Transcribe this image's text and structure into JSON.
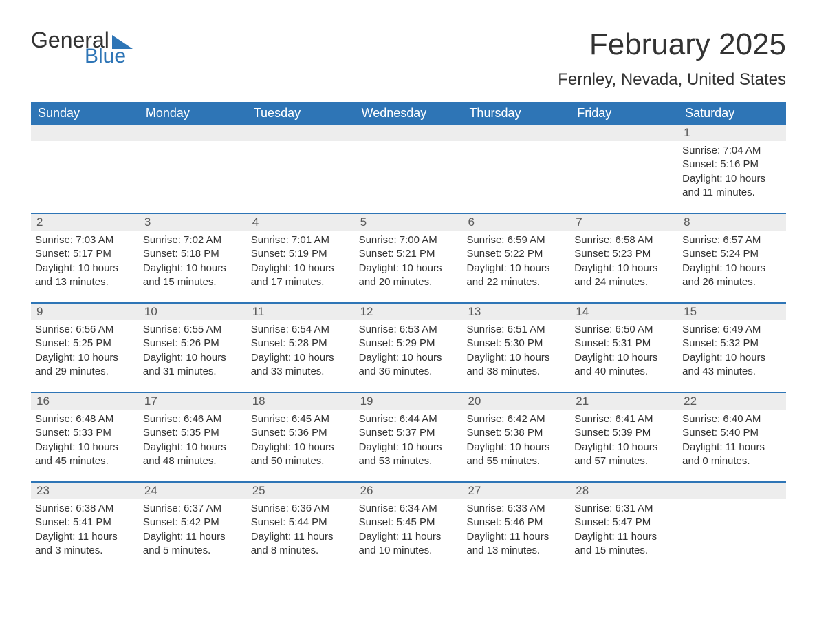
{
  "logo": {
    "text1": "General",
    "text2": "Blue"
  },
  "title": "February 2025",
  "location": "Fernley, Nevada, United States",
  "colors": {
    "accent": "#2e75b6",
    "header_text": "#ffffff",
    "daynum_bg": "#ededed",
    "daynum_text": "#595959",
    "body_text": "#333333",
    "background": "#ffffff"
  },
  "weekdays": [
    "Sunday",
    "Monday",
    "Tuesday",
    "Wednesday",
    "Thursday",
    "Friday",
    "Saturday"
  ],
  "weeks": [
    [
      {
        "day": "",
        "sunrise": "",
        "sunset": "",
        "daylight": ""
      },
      {
        "day": "",
        "sunrise": "",
        "sunset": "",
        "daylight": ""
      },
      {
        "day": "",
        "sunrise": "",
        "sunset": "",
        "daylight": ""
      },
      {
        "day": "",
        "sunrise": "",
        "sunset": "",
        "daylight": ""
      },
      {
        "day": "",
        "sunrise": "",
        "sunset": "",
        "daylight": ""
      },
      {
        "day": "",
        "sunrise": "",
        "sunset": "",
        "daylight": ""
      },
      {
        "day": "1",
        "sunrise": "Sunrise: 7:04 AM",
        "sunset": "Sunset: 5:16 PM",
        "daylight": "Daylight: 10 hours and 11 minutes."
      }
    ],
    [
      {
        "day": "2",
        "sunrise": "Sunrise: 7:03 AM",
        "sunset": "Sunset: 5:17 PM",
        "daylight": "Daylight: 10 hours and 13 minutes."
      },
      {
        "day": "3",
        "sunrise": "Sunrise: 7:02 AM",
        "sunset": "Sunset: 5:18 PM",
        "daylight": "Daylight: 10 hours and 15 minutes."
      },
      {
        "day": "4",
        "sunrise": "Sunrise: 7:01 AM",
        "sunset": "Sunset: 5:19 PM",
        "daylight": "Daylight: 10 hours and 17 minutes."
      },
      {
        "day": "5",
        "sunrise": "Sunrise: 7:00 AM",
        "sunset": "Sunset: 5:21 PM",
        "daylight": "Daylight: 10 hours and 20 minutes."
      },
      {
        "day": "6",
        "sunrise": "Sunrise: 6:59 AM",
        "sunset": "Sunset: 5:22 PM",
        "daylight": "Daylight: 10 hours and 22 minutes."
      },
      {
        "day": "7",
        "sunrise": "Sunrise: 6:58 AM",
        "sunset": "Sunset: 5:23 PM",
        "daylight": "Daylight: 10 hours and 24 minutes."
      },
      {
        "day": "8",
        "sunrise": "Sunrise: 6:57 AM",
        "sunset": "Sunset: 5:24 PM",
        "daylight": "Daylight: 10 hours and 26 minutes."
      }
    ],
    [
      {
        "day": "9",
        "sunrise": "Sunrise: 6:56 AM",
        "sunset": "Sunset: 5:25 PM",
        "daylight": "Daylight: 10 hours and 29 minutes."
      },
      {
        "day": "10",
        "sunrise": "Sunrise: 6:55 AM",
        "sunset": "Sunset: 5:26 PM",
        "daylight": "Daylight: 10 hours and 31 minutes."
      },
      {
        "day": "11",
        "sunrise": "Sunrise: 6:54 AM",
        "sunset": "Sunset: 5:28 PM",
        "daylight": "Daylight: 10 hours and 33 minutes."
      },
      {
        "day": "12",
        "sunrise": "Sunrise: 6:53 AM",
        "sunset": "Sunset: 5:29 PM",
        "daylight": "Daylight: 10 hours and 36 minutes."
      },
      {
        "day": "13",
        "sunrise": "Sunrise: 6:51 AM",
        "sunset": "Sunset: 5:30 PM",
        "daylight": "Daylight: 10 hours and 38 minutes."
      },
      {
        "day": "14",
        "sunrise": "Sunrise: 6:50 AM",
        "sunset": "Sunset: 5:31 PM",
        "daylight": "Daylight: 10 hours and 40 minutes."
      },
      {
        "day": "15",
        "sunrise": "Sunrise: 6:49 AM",
        "sunset": "Sunset: 5:32 PM",
        "daylight": "Daylight: 10 hours and 43 minutes."
      }
    ],
    [
      {
        "day": "16",
        "sunrise": "Sunrise: 6:48 AM",
        "sunset": "Sunset: 5:33 PM",
        "daylight": "Daylight: 10 hours and 45 minutes."
      },
      {
        "day": "17",
        "sunrise": "Sunrise: 6:46 AM",
        "sunset": "Sunset: 5:35 PM",
        "daylight": "Daylight: 10 hours and 48 minutes."
      },
      {
        "day": "18",
        "sunrise": "Sunrise: 6:45 AM",
        "sunset": "Sunset: 5:36 PM",
        "daylight": "Daylight: 10 hours and 50 minutes."
      },
      {
        "day": "19",
        "sunrise": "Sunrise: 6:44 AM",
        "sunset": "Sunset: 5:37 PM",
        "daylight": "Daylight: 10 hours and 53 minutes."
      },
      {
        "day": "20",
        "sunrise": "Sunrise: 6:42 AM",
        "sunset": "Sunset: 5:38 PM",
        "daylight": "Daylight: 10 hours and 55 minutes."
      },
      {
        "day": "21",
        "sunrise": "Sunrise: 6:41 AM",
        "sunset": "Sunset: 5:39 PM",
        "daylight": "Daylight: 10 hours and 57 minutes."
      },
      {
        "day": "22",
        "sunrise": "Sunrise: 6:40 AM",
        "sunset": "Sunset: 5:40 PM",
        "daylight": "Daylight: 11 hours and 0 minutes."
      }
    ],
    [
      {
        "day": "23",
        "sunrise": "Sunrise: 6:38 AM",
        "sunset": "Sunset: 5:41 PM",
        "daylight": "Daylight: 11 hours and 3 minutes."
      },
      {
        "day": "24",
        "sunrise": "Sunrise: 6:37 AM",
        "sunset": "Sunset: 5:42 PM",
        "daylight": "Daylight: 11 hours and 5 minutes."
      },
      {
        "day": "25",
        "sunrise": "Sunrise: 6:36 AM",
        "sunset": "Sunset: 5:44 PM",
        "daylight": "Daylight: 11 hours and 8 minutes."
      },
      {
        "day": "26",
        "sunrise": "Sunrise: 6:34 AM",
        "sunset": "Sunset: 5:45 PM",
        "daylight": "Daylight: 11 hours and 10 minutes."
      },
      {
        "day": "27",
        "sunrise": "Sunrise: 6:33 AM",
        "sunset": "Sunset: 5:46 PM",
        "daylight": "Daylight: 11 hours and 13 minutes."
      },
      {
        "day": "28",
        "sunrise": "Sunrise: 6:31 AM",
        "sunset": "Sunset: 5:47 PM",
        "daylight": "Daylight: 11 hours and 15 minutes."
      },
      {
        "day": "",
        "sunrise": "",
        "sunset": "",
        "daylight": ""
      }
    ]
  ]
}
